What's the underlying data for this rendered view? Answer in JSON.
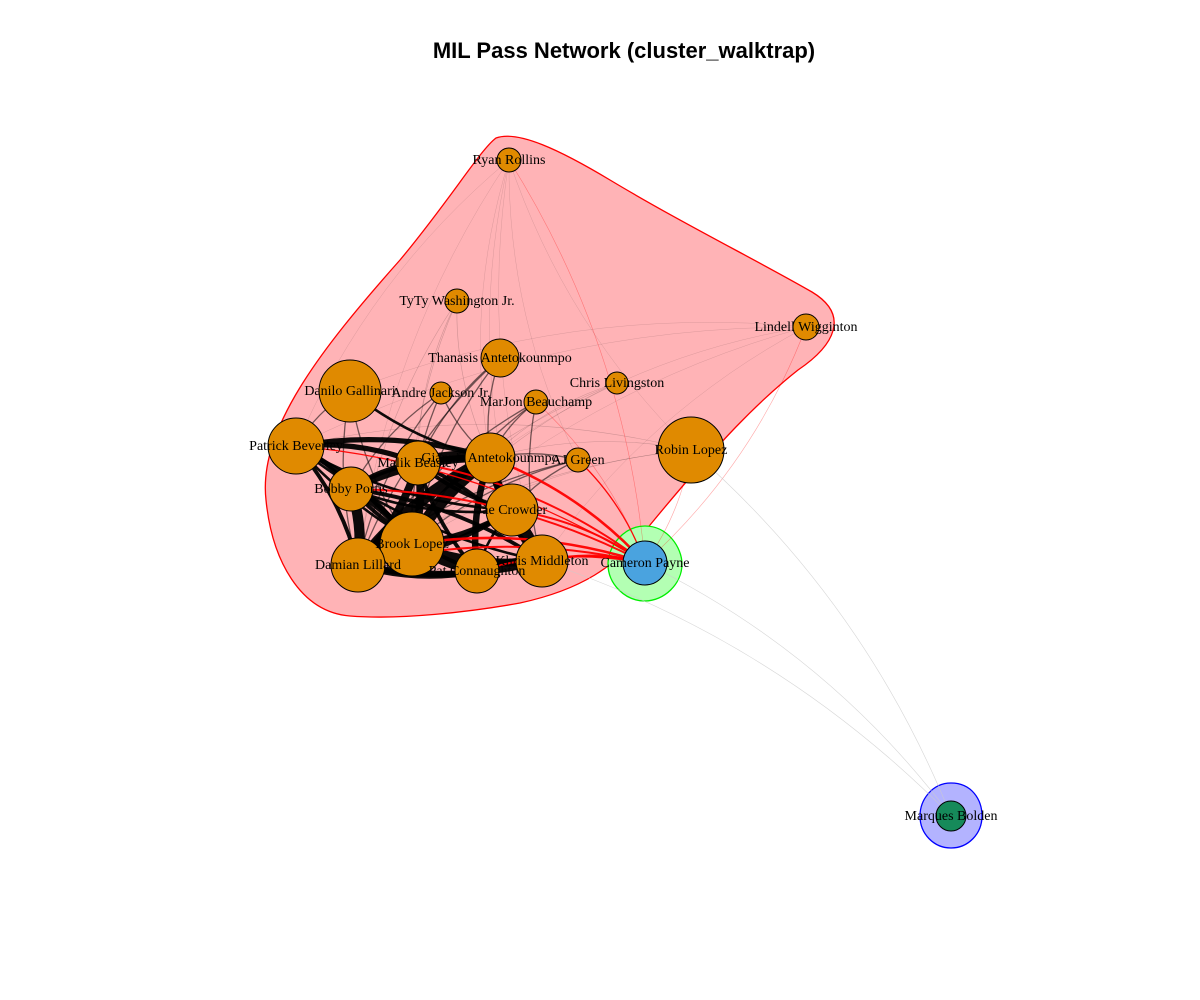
{
  "title": "MIL Pass Network (cluster_walktrap)",
  "colors": {
    "cluster_main_fill": "#ffb3b6",
    "cluster_main_stroke": "#ff0000",
    "cluster_payne_fill": "#b3ffb3",
    "cluster_payne_stroke": "#00ee00",
    "cluster_bolden_fill": "#b3b3ff",
    "cluster_bolden_stroke": "#0000ff",
    "node_main": "#e08a00",
    "node_payne": "#4aa3df",
    "node_bolden": "#168a5a",
    "edge_in_cluster": "#000000",
    "edge_cross_cluster": "#ff0000",
    "edge_to_bolden": "#cccccc"
  },
  "clusters": [
    {
      "id": "main",
      "members": [
        "Ryan Rollins",
        "TyTy Washington Jr.",
        "Lindell Wigginton",
        "Thanasis Antetokounmpo",
        "Danilo Gallinari",
        "Andre Jackson Jr.",
        "MarJon Beauchamp",
        "Chris Livingston",
        "Patrick Beverley",
        "Giannis Antetokounmpo",
        "Malik Beasley",
        "AJ Green",
        "Robin Lopez",
        "Bobby Portis",
        "Jae Crowder",
        "Brook Lopez",
        "Damian Lillard",
        "Pat Connaughton",
        "Khris Middleton"
      ]
    },
    {
      "id": "payne",
      "members": [
        "Cameron Payne"
      ]
    },
    {
      "id": "bolden",
      "members": [
        "Marques Bolden"
      ]
    }
  ],
  "nodes": [
    {
      "name": "Ryan Rollins",
      "cluster": "main"
    },
    {
      "name": "TyTy Washington Jr.",
      "cluster": "main"
    },
    {
      "name": "Lindell Wigginton",
      "cluster": "main"
    },
    {
      "name": "Thanasis Antetokounmpo",
      "cluster": "main"
    },
    {
      "name": "Danilo Gallinari",
      "cluster": "main"
    },
    {
      "name": "Andre Jackson Jr.",
      "cluster": "main"
    },
    {
      "name": "MarJon Beauchamp",
      "cluster": "main"
    },
    {
      "name": "Chris Livingston",
      "cluster": "main"
    },
    {
      "name": "Patrick Beverley",
      "cluster": "main"
    },
    {
      "name": "Giannis Antetokounmpo",
      "cluster": "main"
    },
    {
      "name": "Malik Beasley",
      "cluster": "main"
    },
    {
      "name": "AJ Green",
      "cluster": "main"
    },
    {
      "name": "Robin Lopez",
      "cluster": "main"
    },
    {
      "name": "Bobby Portis",
      "cluster": "main"
    },
    {
      "name": "Jae Crowder",
      "cluster": "main"
    },
    {
      "name": "Brook Lopez",
      "cluster": "main"
    },
    {
      "name": "Damian Lillard",
      "cluster": "main"
    },
    {
      "name": "Pat Connaughton",
      "cluster": "main"
    },
    {
      "name": "Khris Middleton",
      "cluster": "main"
    },
    {
      "name": "Cameron Payne",
      "cluster": "payne"
    },
    {
      "name": "Marques Bolden",
      "cluster": "bolden"
    }
  ],
  "edges": [
    {
      "source": "Giannis Antetokounmpo",
      "target": "Brook Lopez",
      "weight": 10
    },
    {
      "source": "Giannis Antetokounmpo",
      "target": "Malik Beasley",
      "weight": 8
    },
    {
      "source": "Giannis Antetokounmpo",
      "target": "Damian Lillard",
      "weight": 9
    },
    {
      "source": "Giannis Antetokounmpo",
      "target": "Bobby Portis",
      "weight": 6
    },
    {
      "source": "Giannis Antetokounmpo",
      "target": "Jae Crowder",
      "weight": 5
    },
    {
      "source": "Giannis Antetokounmpo",
      "target": "Khris Middleton",
      "weight": 7
    },
    {
      "source": "Giannis Antetokounmpo",
      "target": "Pat Connaughton",
      "weight": 5
    },
    {
      "source": "Giannis Antetokounmpo",
      "target": "Patrick Beverley",
      "weight": 4
    },
    {
      "source": "Damian Lillard",
      "target": "Brook Lopez",
      "weight": 8
    },
    {
      "source": "Damian Lillard",
      "target": "Bobby Portis",
      "weight": 8
    },
    {
      "source": "Damian Lillard",
      "target": "Malik Beasley",
      "weight": 6
    },
    {
      "source": "Damian Lillard",
      "target": "Khris Middleton",
      "weight": 5
    },
    {
      "source": "Damian Lillard",
      "target": "Pat Connaughton",
      "weight": 5
    },
    {
      "source": "Damian Lillard",
      "target": "Jae Crowder",
      "weight": 4
    },
    {
      "source": "Damian Lillard",
      "target": "Patrick Beverley",
      "weight": 3
    },
    {
      "source": "Brook Lopez",
      "target": "Malik Beasley",
      "weight": 6
    },
    {
      "source": "Brook Lopez",
      "target": "Bobby Portis",
      "weight": 5
    },
    {
      "source": "Brook Lopez",
      "target": "Khris Middleton",
      "weight": 6
    },
    {
      "source": "Brook Lopez",
      "target": "Pat Connaughton",
      "weight": 6
    },
    {
      "source": "Brook Lopez",
      "target": "Jae Crowder",
      "weight": 4
    },
    {
      "source": "Brook Lopez",
      "target": "Patrick Beverley",
      "weight": 4
    },
    {
      "source": "Khris Middleton",
      "target": "Jae Crowder",
      "weight": 4
    },
    {
      "source": "Khris Middleton",
      "target": "Pat Connaughton",
      "weight": 5
    },
    {
      "source": "Khris Middleton",
      "target": "Bobby Portis",
      "weight": 3
    },
    {
      "source": "Khris Middleton",
      "target": "Malik Beasley",
      "weight": 3
    },
    {
      "source": "Malik Beasley",
      "target": "Bobby Portis",
      "weight": 4
    },
    {
      "source": "Malik Beasley",
      "target": "Patrick Beverley",
      "weight": 4
    },
    {
      "source": "Malik Beasley",
      "target": "Jae Crowder",
      "weight": 3
    },
    {
      "source": "Malik Beasley",
      "target": "Pat Connaughton",
      "weight": 3
    },
    {
      "source": "Bobby Portis",
      "target": "Patrick Beverley",
      "weight": 3
    },
    {
      "source": "Bobby Portis",
      "target": "Pat Connaughton",
      "weight": 3
    },
    {
      "source": "Bobby Portis",
      "target": "Jae Crowder",
      "weight": 2
    },
    {
      "source": "Patrick Beverley",
      "target": "Pat Connaughton",
      "weight": 2
    },
    {
      "source": "Patrick Beverley",
      "target": "Jae Crowder",
      "weight": 2
    },
    {
      "source": "Patrick Beverley",
      "target": "Khris Middleton",
      "weight": 2
    },
    {
      "source": "Danilo Gallinari",
      "target": "Giannis Antetokounmpo",
      "weight": 2
    },
    {
      "source": "Danilo Gallinari",
      "target": "Brook Lopez",
      "weight": 1
    },
    {
      "source": "Danilo Gallinari",
      "target": "Damian Lillard",
      "weight": 1
    },
    {
      "source": "Danilo Gallinari",
      "target": "Patrick Beverley",
      "weight": 1
    },
    {
      "source": "Jae Crowder",
      "target": "Pat Connaughton",
      "weight": 2
    },
    {
      "source": "AJ Green",
      "target": "Giannis Antetokounmpo",
      "weight": 1
    },
    {
      "source": "AJ Green",
      "target": "Brook Lopez",
      "weight": 1
    },
    {
      "source": "AJ Green",
      "target": "Damian Lillard",
      "weight": 1
    },
    {
      "source": "AJ Green",
      "target": "Jae Crowder",
      "weight": 1
    },
    {
      "source": "MarJon Beauchamp",
      "target": "Giannis Antetokounmpo",
      "weight": 1
    },
    {
      "source": "MarJon Beauchamp",
      "target": "Brook Lopez",
      "weight": 1
    },
    {
      "source": "MarJon Beauchamp",
      "target": "Damian Lillard",
      "weight": 1
    },
    {
      "source": "MarJon Beauchamp",
      "target": "Khris Middleton",
      "weight": 1
    },
    {
      "source": "Andre Jackson Jr.",
      "target": "Giannis Antetokounmpo",
      "weight": 1
    },
    {
      "source": "Andre Jackson Jr.",
      "target": "Damian Lillard",
      "weight": 1
    },
    {
      "source": "Andre Jackson Jr.",
      "target": "Brook Lopez",
      "weight": 1
    },
    {
      "source": "Andre Jackson Jr.",
      "target": "Bobby Portis",
      "weight": 1
    },
    {
      "source": "Thanasis Antetokounmpo",
      "target": "Giannis Antetokounmpo",
      "weight": 1
    },
    {
      "source": "Thanasis Antetokounmpo",
      "target": "Brook Lopez",
      "weight": 1
    },
    {
      "source": "Thanasis Antetokounmpo",
      "target": "Damian Lillard",
      "weight": 1
    },
    {
      "source": "Thanasis Antetokounmpo",
      "target": "Malik Beasley",
      "weight": 1
    },
    {
      "source": "TyTy Washington Jr.",
      "target": "Giannis Antetokounmpo",
      "weight": 0.5
    },
    {
      "source": "TyTy Washington Jr.",
      "target": "Damian Lillard",
      "weight": 0.5
    },
    {
      "source": "TyTy Washington Jr.",
      "target": "Brook Lopez",
      "weight": 0.5
    },
    {
      "source": "TyTy Washington Jr.",
      "target": "Malik Beasley",
      "weight": 0.5
    },
    {
      "source": "Ryan Rollins",
      "target": "Giannis Antetokounmpo",
      "weight": 0.3
    },
    {
      "source": "Ryan Rollins",
      "target": "Damian Lillard",
      "weight": 0.3
    },
    {
      "source": "Ryan Rollins",
      "target": "Patrick Beverley",
      "weight": 0.3
    },
    {
      "source": "Ryan Rollins",
      "target": "Robin Lopez",
      "weight": 0.3
    },
    {
      "source": "Ryan Rollins",
      "target": "Jae Crowder",
      "weight": 0.3
    },
    {
      "source": "Ryan Rollins",
      "target": "Khris Middleton",
      "weight": 0.3
    },
    {
      "source": "Ryan Rollins",
      "target": "AJ Green",
      "weight": 0.3
    },
    {
      "source": "Lindell Wigginton",
      "target": "Giannis Antetokounmpo",
      "weight": 0.3
    },
    {
      "source": "Lindell Wigginton",
      "target": "Brook Lopez",
      "weight": 0.3
    },
    {
      "source": "Lindell Wigginton",
      "target": "Khris Middleton",
      "weight": 0.3
    },
    {
      "source": "Lindell Wigginton",
      "target": "Danilo Gallinari",
      "weight": 0.3
    },
    {
      "source": "Lindell Wigginton",
      "target": "Patrick Beverley",
      "weight": 0.3
    },
    {
      "source": "Chris Livingston",
      "target": "Giannis Antetokounmpo",
      "weight": 0.5
    },
    {
      "source": "Chris Livingston",
      "target": "Brook Lopez",
      "weight": 0.5
    },
    {
      "source": "Chris Livingston",
      "target": "Damian Lillard",
      "weight": 0.5
    },
    {
      "source": "Robin Lopez",
      "target": "Giannis Antetokounmpo",
      "weight": 0.4
    },
    {
      "source": "Robin Lopez",
      "target": "Damian Lillard",
      "weight": 0.4
    },
    {
      "source": "Robin Lopez",
      "target": "Brook Lopez",
      "weight": 0.4
    },
    {
      "source": "Robin Lopez",
      "target": "Patrick Beverley",
      "weight": 0.4
    },
    {
      "source": "Cameron Payne",
      "target": "Giannis Antetokounmpo",
      "weight": 2
    },
    {
      "source": "Cameron Payne",
      "target": "Brook Lopez",
      "weight": 2
    },
    {
      "source": "Cameron Payne",
      "target": "Damian Lillard",
      "weight": 1.5
    },
    {
      "source": "Cameron Payne",
      "target": "Khris Middleton",
      "weight": 2
    },
    {
      "source": "Cameron Payne",
      "target": "Malik Beasley",
      "weight": 1.5
    },
    {
      "source": "Cameron Payne",
      "target": "Bobby Portis",
      "weight": 1.5
    },
    {
      "source": "Cameron Payne",
      "target": "Pat Connaughton",
      "weight": 1.5
    },
    {
      "source": "Cameron Payne",
      "target": "Jae Crowder",
      "weight": 1.5
    },
    {
      "source": "Cameron Payne",
      "target": "AJ Green",
      "weight": 1
    },
    {
      "source": "Cameron Payne",
      "target": "Patrick Beverley",
      "weight": 1
    },
    {
      "source": "Cameron Payne",
      "target": "MarJon Beauchamp",
      "weight": 0.5
    },
    {
      "source": "Cameron Payne",
      "target": "Robin Lopez",
      "weight": 0.5
    },
    {
      "source": "Cameron Payne",
      "target": "Lindell Wigginton",
      "weight": 0.3
    },
    {
      "source": "Cameron Payne",
      "target": "Ryan Rollins",
      "weight": 0.3
    },
    {
      "source": "Marques Bolden",
      "target": "Cameron Payne",
      "weight": 0.2
    },
    {
      "source": "Marques Bolden",
      "target": "Khris Middleton",
      "weight": 0.2
    },
    {
      "source": "Marques Bolden",
      "target": "Robin Lopez",
      "weight": 0.2
    }
  ]
}
